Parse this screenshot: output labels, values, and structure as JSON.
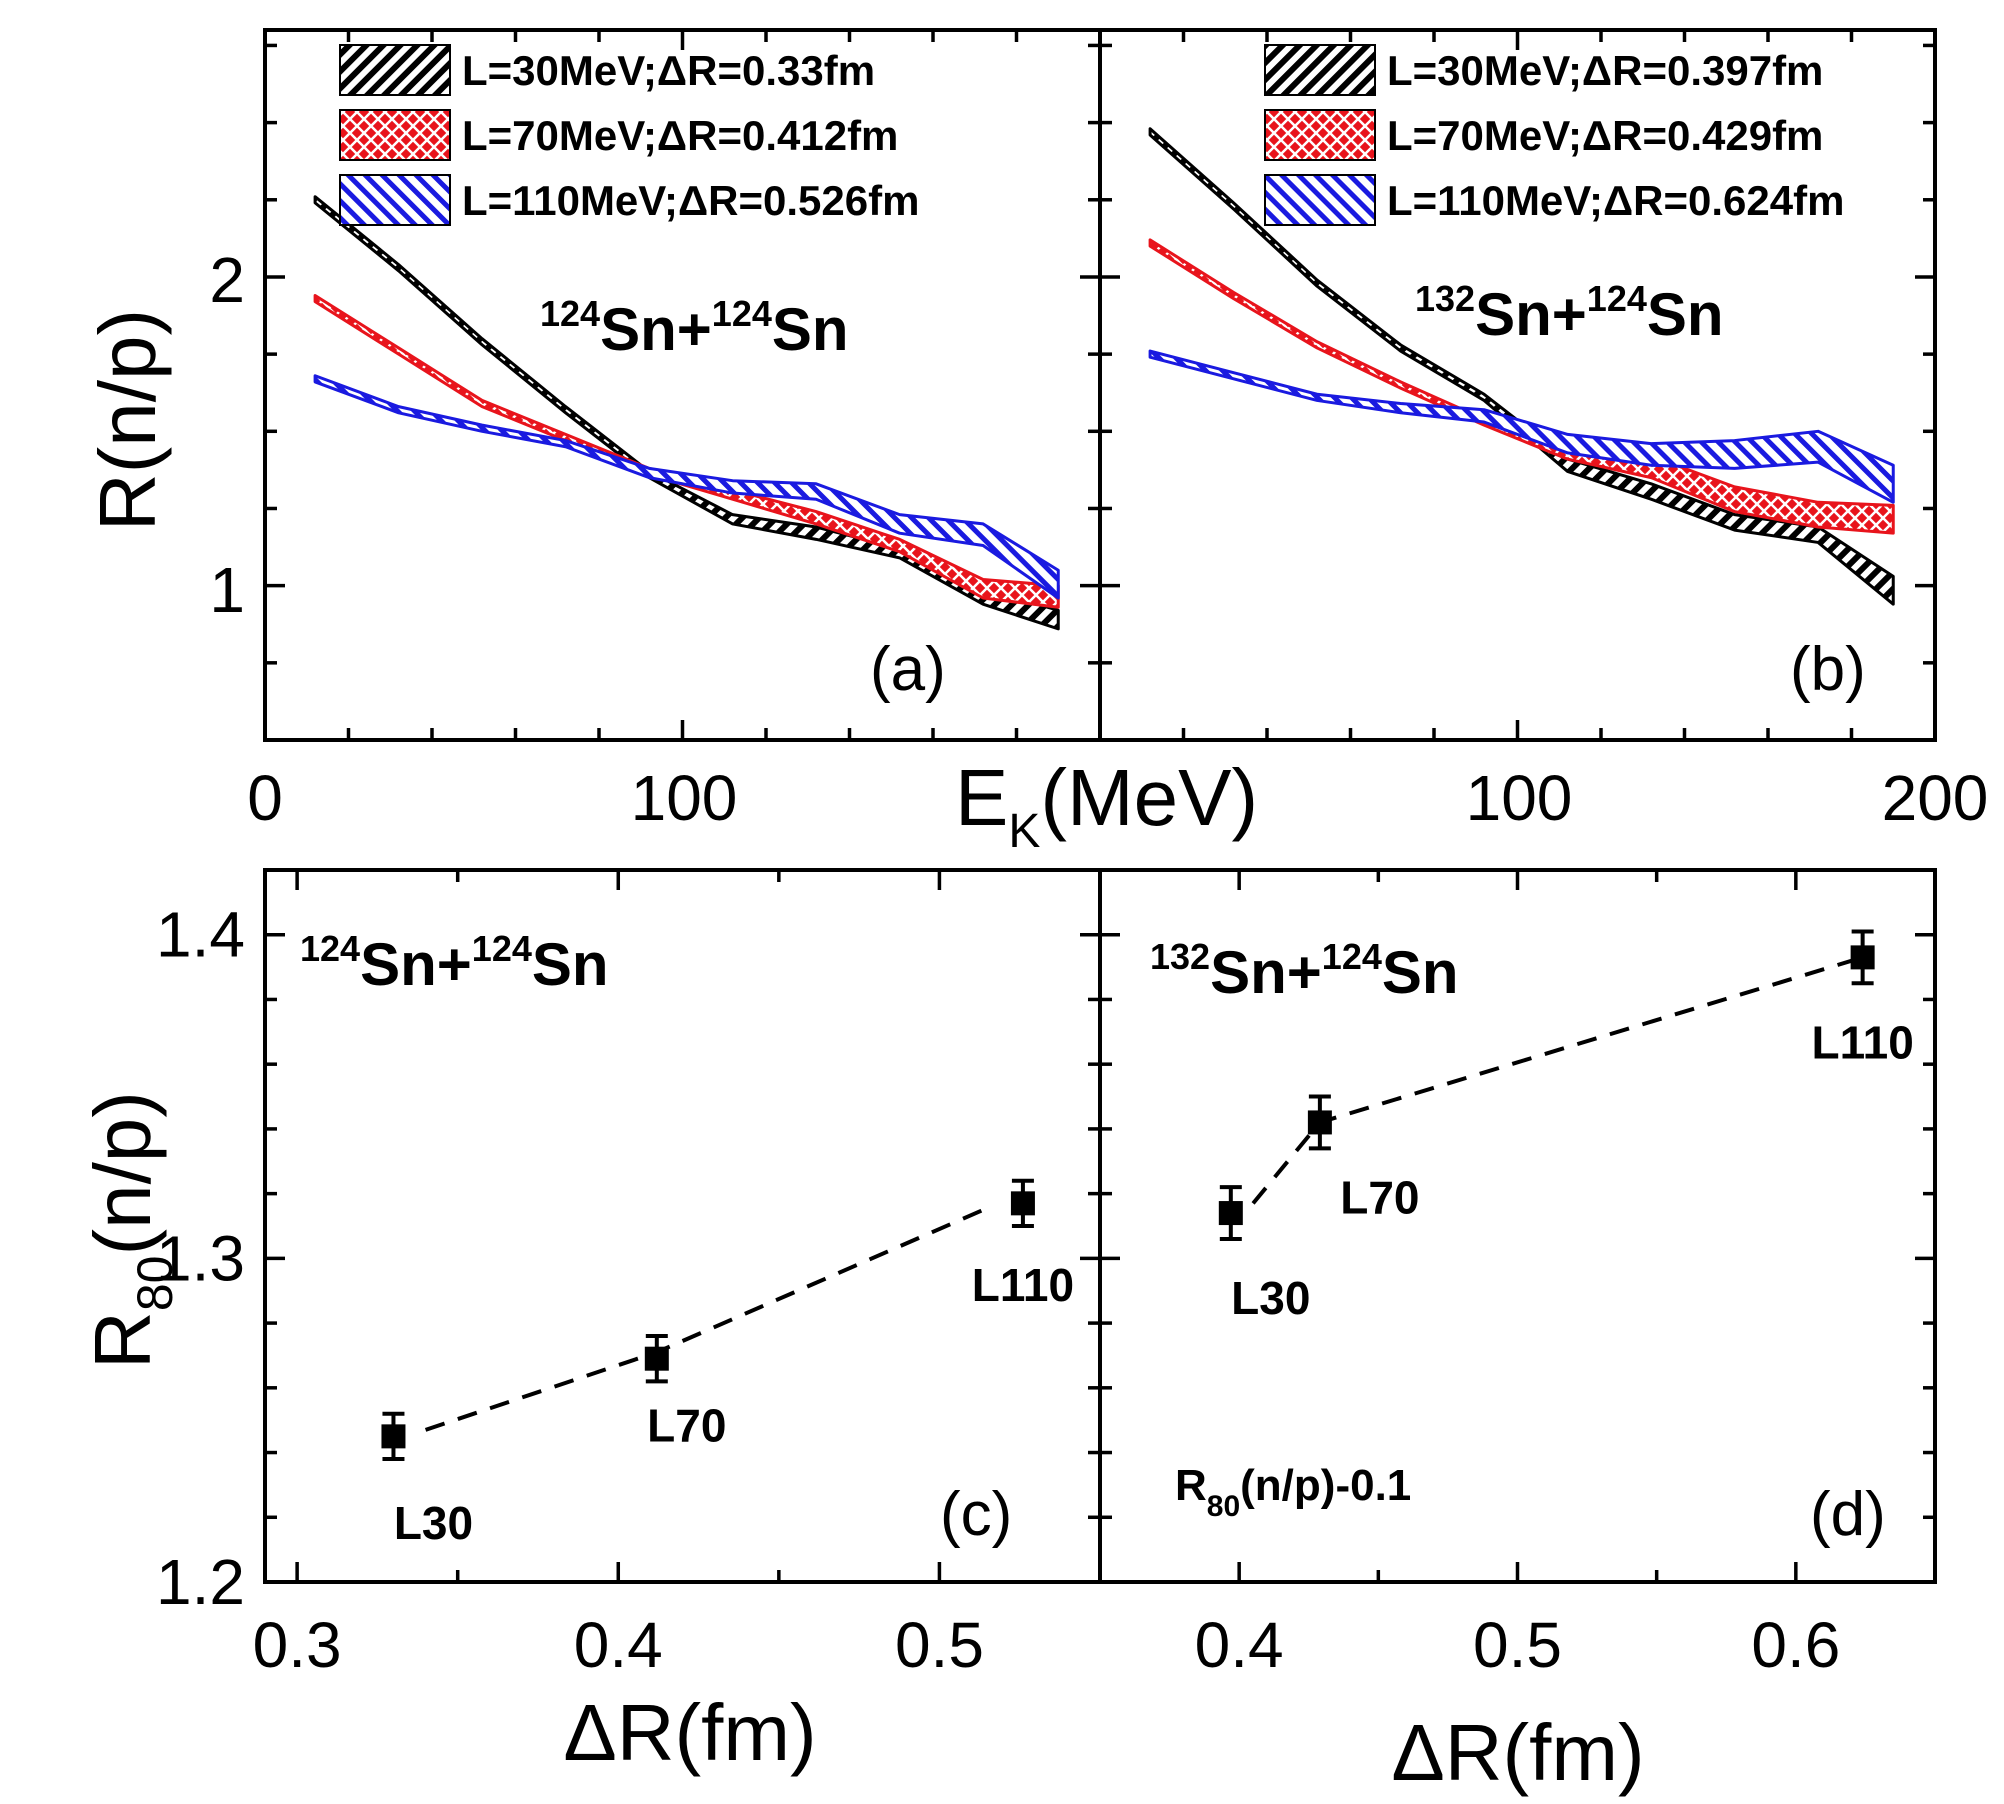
{
  "colors": {
    "black": "#000000",
    "red": "#e8141c",
    "blue": "#1a1ae0"
  },
  "top": {
    "x_axis": {
      "label": "E",
      "label_sub": "K",
      "label_unit": "(MeV)",
      "ticks": [
        "0",
        "100",
        "100",
        "200"
      ]
    },
    "y_axis": {
      "label": "R(n/p)",
      "ticks": [
        "1",
        "2"
      ]
    }
  },
  "bottom": {
    "y_axis": {
      "label": "R",
      "label_sub": "80",
      "label_tail": "(n/p)",
      "ticks": [
        "1.2",
        "1.3",
        "1.4"
      ]
    }
  },
  "chart_data": [
    {
      "panel": "a",
      "type": "line",
      "panel_label": "(a)",
      "reaction": {
        "a1": "124",
        "e1": "Sn+",
        "a2": "124",
        "e2": "Sn"
      },
      "xlim": [
        0,
        200
      ],
      "ylim": [
        0.5,
        2.8
      ],
      "xtick_step": 20,
      "ytick_step": 0.25,
      "x": [
        12,
        32,
        52,
        72,
        92,
        112,
        132,
        152,
        172,
        190
      ],
      "series": [
        {
          "name": "L=30MeV;ΔR=0.33fm",
          "color": "#000000",
          "fill": "diag",
          "lo": [
            2.24,
            2.02,
            1.78,
            1.56,
            1.35,
            1.2,
            1.15,
            1.09,
            0.94,
            0.86
          ],
          "hi": [
            2.26,
            2.04,
            1.8,
            1.58,
            1.37,
            1.23,
            1.19,
            1.12,
            0.99,
            0.92
          ]
        },
        {
          "name": "L=70MeV;ΔR=0.412fm",
          "color": "#e8141c",
          "fill": "cross",
          "lo": [
            1.92,
            1.75,
            1.58,
            1.47,
            1.36,
            1.28,
            1.2,
            1.11,
            0.96,
            0.93
          ],
          "hi": [
            1.94,
            1.77,
            1.6,
            1.49,
            1.38,
            1.31,
            1.24,
            1.15,
            1.02,
            1.0
          ]
        },
        {
          "name": "L=110MeV;ΔR=0.526fm",
          "color": "#1a1ae0",
          "fill": "anti",
          "lo": [
            1.66,
            1.56,
            1.5,
            1.45,
            1.35,
            1.3,
            1.28,
            1.17,
            1.13,
            0.96
          ],
          "hi": [
            1.68,
            1.58,
            1.52,
            1.47,
            1.38,
            1.34,
            1.33,
            1.23,
            1.2,
            1.05
          ]
        }
      ]
    },
    {
      "panel": "b",
      "type": "line",
      "panel_label": "(b)",
      "reaction": {
        "a1": "132",
        "e1": "Sn+",
        "a2": "124",
        "e2": "Sn"
      },
      "xlim": [
        0,
        200
      ],
      "ylim": [
        0.5,
        2.8
      ],
      "xtick_step": 20,
      "ytick_step": 0.25,
      "x": [
        12,
        32,
        52,
        72,
        92,
        112,
        132,
        152,
        172,
        190
      ],
      "series": [
        {
          "name": "L=30MeV;ΔR=0.397fm",
          "color": "#000000",
          "fill": "diag",
          "lo": [
            2.46,
            2.22,
            1.97,
            1.76,
            1.6,
            1.37,
            1.28,
            1.18,
            1.14,
            0.94
          ],
          "hi": [
            2.48,
            2.24,
            1.99,
            1.78,
            1.62,
            1.41,
            1.33,
            1.23,
            1.19,
            1.03
          ]
        },
        {
          "name": "L=70MeV;ΔR=0.429fm",
          "color": "#e8141c",
          "fill": "cross",
          "lo": [
            2.1,
            1.93,
            1.77,
            1.64,
            1.52,
            1.41,
            1.35,
            1.24,
            1.19,
            1.17
          ],
          "hi": [
            2.12,
            1.95,
            1.79,
            1.66,
            1.54,
            1.45,
            1.42,
            1.32,
            1.27,
            1.26
          ]
        },
        {
          "name": "L=110MeV;ΔR=0.624fm",
          "color": "#1a1ae0",
          "fill": "anti",
          "lo": [
            1.74,
            1.67,
            1.6,
            1.56,
            1.53,
            1.43,
            1.39,
            1.38,
            1.4,
            1.27
          ],
          "hi": [
            1.76,
            1.69,
            1.62,
            1.59,
            1.57,
            1.49,
            1.46,
            1.47,
            1.5,
            1.39
          ]
        }
      ]
    },
    {
      "panel": "c",
      "type": "scatter",
      "panel_label": "(c)",
      "reaction": {
        "a1": "124",
        "e1": "Sn+",
        "a2": "124",
        "e2": "Sn"
      },
      "xlabel": "ΔR(fm)",
      "xlim": [
        0.29,
        0.55
      ],
      "ylim": [
        1.2,
        1.42
      ],
      "xticks": [
        0.3,
        0.4,
        0.5
      ],
      "xtick_labels": [
        "0.3",
        "0.4",
        "0.5"
      ],
      "xminor": 0.05,
      "yticks": [
        1.2,
        1.3,
        1.4
      ],
      "yminor": 0.02,
      "points": [
        {
          "x": 0.33,
          "y": 1.245,
          "err": 0.007,
          "label": "L30"
        },
        {
          "x": 0.412,
          "y": 1.269,
          "err": 0.007,
          "label": "L70"
        },
        {
          "x": 0.526,
          "y": 1.317,
          "err": 0.007,
          "label": "L110"
        }
      ],
      "fit": {
        "x": [
          0.34,
          0.412,
          0.516
        ],
        "y": [
          1.247,
          1.271,
          1.316
        ]
      }
    },
    {
      "panel": "d",
      "type": "scatter",
      "panel_label": "(d)",
      "reaction": {
        "a1": "132",
        "e1": "Sn+",
        "a2": "124",
        "e2": "Sn"
      },
      "note": {
        "main": "R",
        "sub": "80",
        "tail": "(n/p)-0.1"
      },
      "xlabel": "ΔR(fm)",
      "xlim": [
        0.35,
        0.65
      ],
      "ylim": [
        1.2,
        1.42
      ],
      "xticks": [
        0.4,
        0.5,
        0.6
      ],
      "xtick_labels": [
        "0.4",
        "0.5",
        "0.6"
      ],
      "xminor": 0.05,
      "yticks": [
        1.2,
        1.3,
        1.4
      ],
      "yminor": 0.02,
      "points": [
        {
          "x": 0.397,
          "y": 1.314,
          "err": 0.008,
          "label": "L30"
        },
        {
          "x": 0.429,
          "y": 1.342,
          "err": 0.008,
          "label": "L70"
        },
        {
          "x": 0.624,
          "y": 1.393,
          "err": 0.008,
          "label": "L110"
        }
      ],
      "fit": {
        "x": [
          0.405,
          0.429,
          0.624
        ],
        "y": [
          1.317,
          1.342,
          1.393
        ]
      }
    }
  ]
}
